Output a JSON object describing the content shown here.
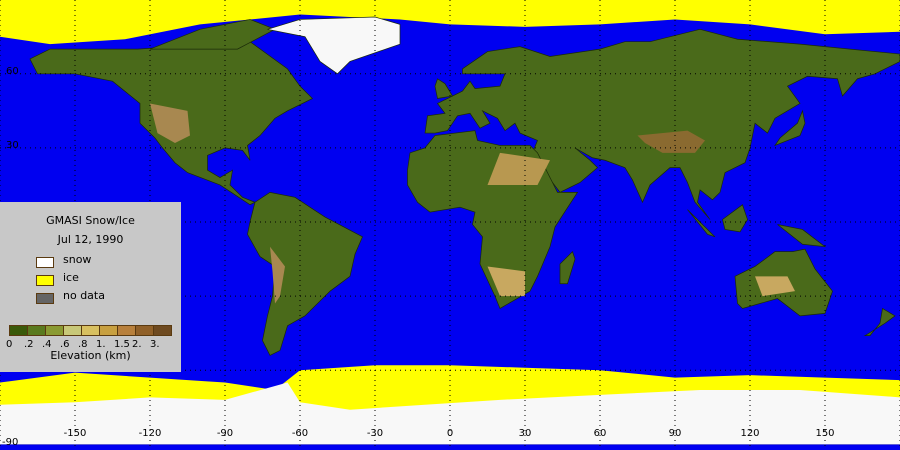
{
  "legend": {
    "title": "GMASI Snow/Ice",
    "date": "Jul 12, 1990",
    "items": [
      {
        "label": "snow",
        "color": "#ffffff"
      },
      {
        "label": "ice",
        "color": "#ffff00"
      },
      {
        "label": "no data",
        "color": "#646464"
      }
    ],
    "colorbar": {
      "colors": [
        "#3a5a0a",
        "#5a7a1e",
        "#8a9a32",
        "#c8c878",
        "#d8c060",
        "#c8a040",
        "#b8803c",
        "#906028",
        "#6e4a20"
      ],
      "labels": [
        "0",
        ".2",
        ".4",
        ".6",
        ".8",
        "1.",
        "1.5",
        "2.",
        "3."
      ],
      "title": "Elevation (km)"
    }
  },
  "axes": {
    "lon_ticks": [
      "-150",
      "-120",
      "-90",
      "-60",
      "-30",
      "0",
      "30",
      "60",
      "90",
      "120",
      "150"
    ],
    "lat_labels": [
      "60",
      "30",
      "-90"
    ]
  },
  "colors": {
    "ocean": "#0000f0",
    "land": "#4a6a1a",
    "highland": "#a88850",
    "ice": "#ffff00",
    "snow": "#f8f8f8"
  }
}
